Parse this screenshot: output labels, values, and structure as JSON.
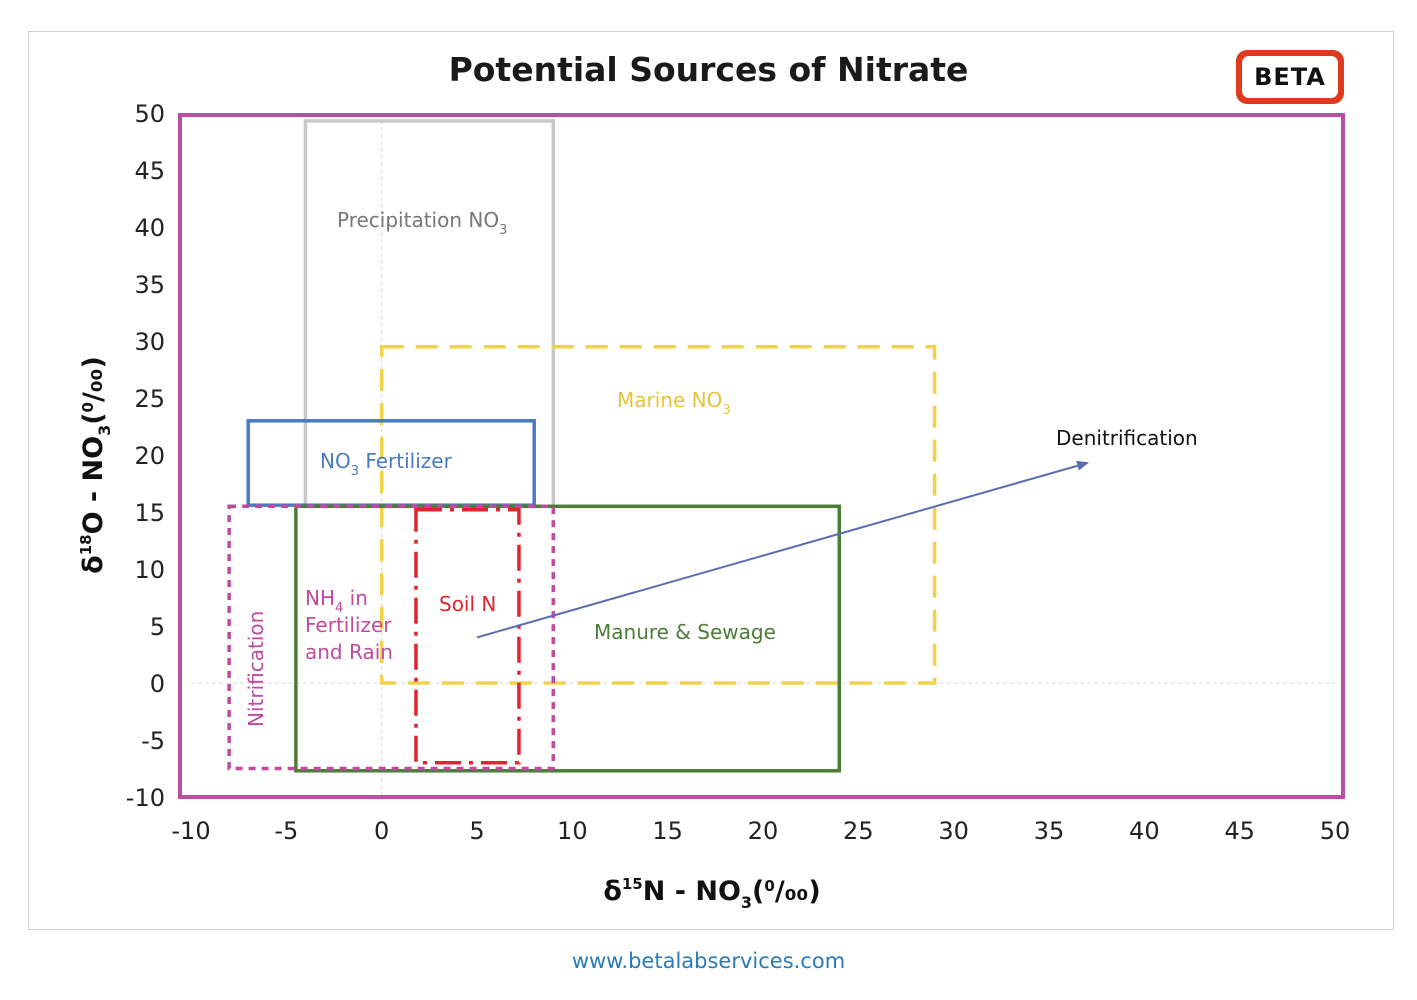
{
  "title": "Potential Sources of Nitrate",
  "logo_text": "BETA",
  "footer_url": "www.betalabservices.com",
  "chart_data": {
    "type": "area",
    "title": "Potential Sources of Nitrate",
    "xlabel": {
      "pre": "δ",
      "sup": "15",
      "mid": "N - NO",
      "sub": "3",
      "open": "(",
      "unit_sup": "0",
      "unit_rest": "/₀₀",
      "close": ")"
    },
    "ylabel": {
      "pre": "δ",
      "sup": "18",
      "mid": "O - NO",
      "sub": "3",
      "open": "(",
      "unit_sup": "0",
      "unit_rest": "/₀₀",
      "close": ")"
    },
    "xlim": [
      -10,
      50
    ],
    "ylim": [
      -10,
      50
    ],
    "xticks": [
      "-10",
      "-5",
      "0",
      "5",
      "10",
      "15",
      "20",
      "25",
      "30",
      "35",
      "40",
      "45",
      "50"
    ],
    "yticks": [
      "50",
      "45",
      "40",
      "35",
      "30",
      "25",
      "20",
      "15",
      "10",
      "5",
      "0",
      "-5",
      "-10"
    ],
    "grid": false,
    "regions": [
      {
        "name": "Precipitation NO3",
        "label": "Precipitation NO",
        "label_sub": "3",
        "x": [
          -4,
          9
        ],
        "y": [
          49.3,
          15.5
        ],
        "color": "#c8c8c8",
        "style": "solid"
      },
      {
        "name": "Marine NO3",
        "label": "Marine NO",
        "label_sub": "3",
        "x": [
          0,
          29
        ],
        "y": [
          29.5,
          0
        ],
        "color": "#f2d248",
        "style": "dashed"
      },
      {
        "name": "NO3 Fertilizer",
        "label": "NO",
        "label_sub": "3",
        "label_rest": " Fertilizer",
        "x": [
          -7,
          8
        ],
        "y": [
          23,
          15.6
        ],
        "color": "#4a7bbf",
        "style": "solid"
      },
      {
        "name": "Manure & Sewage",
        "label": "Manure & Sewage",
        "x": [
          -4.5,
          24
        ],
        "y": [
          15.5,
          -7.7
        ],
        "color": "#4b7d38",
        "style": "solid"
      },
      {
        "name": "Soil N",
        "label": "Soil N",
        "x": [
          1.8,
          7.2
        ],
        "y": [
          15.2,
          -7
        ],
        "color": "#e02530",
        "style": "dashdot"
      },
      {
        "name": "Nitrification",
        "label": "Nitrification",
        "x": [
          -8,
          9
        ],
        "y": [
          15.5,
          -7.5
        ],
        "color": "#c04a9e",
        "style": "dotted"
      },
      {
        "name": "NH4 in Fertilizer and Rain",
        "label_line1": "NH",
        "label_sub": "4",
        "label_line1_rest": " in",
        "label_line2": "Fertilizer",
        "label_line3": "and Rain",
        "color": "#c04a9e"
      }
    ],
    "annotations": [
      {
        "text": "Denitrification",
        "color": "#111111",
        "from": [
          5,
          4
        ],
        "to": [
          37,
          19.3
        ],
        "arrow_color": "#5b6db0"
      }
    ],
    "border_color": "#b94fa0"
  }
}
